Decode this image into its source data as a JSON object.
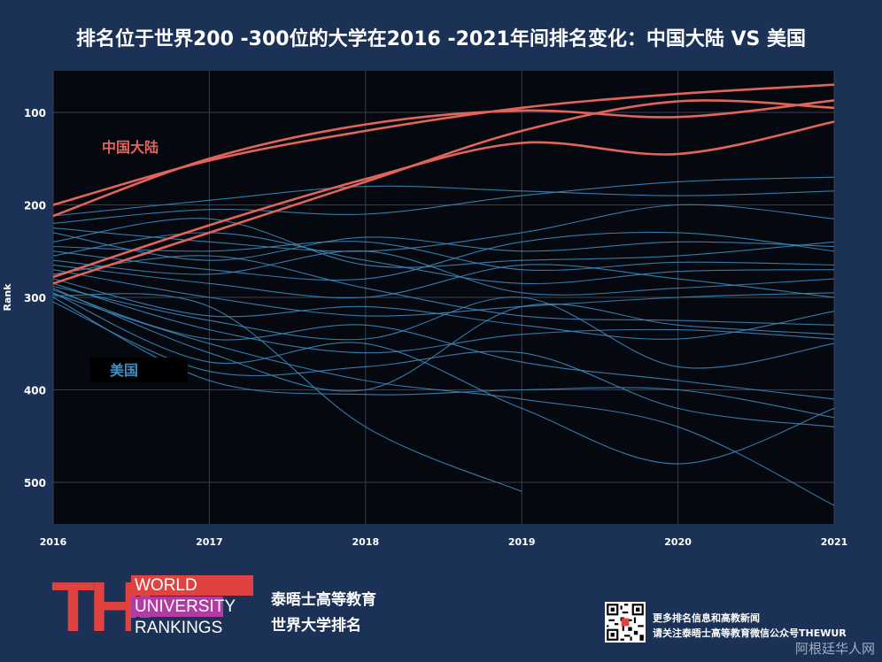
{
  "title": "排名位于世界200 -300位的大学在2016 -2021年间排名变化：中国大陆 VS 美国",
  "chart_data": {
    "type": "line",
    "x": [
      2016,
      2017,
      2018,
      2019,
      2020,
      2021
    ],
    "xlim": [
      2016,
      2021
    ],
    "ylim": [
      545,
      55
    ],
    "y_inverted": true,
    "ylabel": "Rank",
    "yticks": [
      100,
      200,
      300,
      400,
      500
    ],
    "xticks": [
      2016,
      2017,
      2018,
      2019,
      2020,
      2021
    ],
    "grid": true,
    "annotations": [
      {
        "text": "中国大陆",
        "group": "china"
      },
      {
        "text": "美国",
        "group": "usa"
      }
    ],
    "colors": {
      "china": "#e2645a",
      "usa": "#3d8fc4",
      "plot_bg": "#06080f",
      "page_bg": "#1b3156"
    },
    "series": [
      {
        "group": "china",
        "values": [
          200,
          152,
          120,
          95,
          80,
          70
        ]
      },
      {
        "group": "china",
        "values": [
          212,
          150,
          113,
          98,
          105,
          87
        ]
      },
      {
        "group": "china",
        "values": [
          278,
          222,
          172,
          133,
          145,
          110
        ]
      },
      {
        "group": "china",
        "values": [
          285,
          230,
          175,
          120,
          88,
          95
        ]
      },
      {
        "group": "usa",
        "values": [
          212,
          195,
          180,
          185,
          190,
          185
        ]
      },
      {
        "group": "usa",
        "values": [
          220,
          205,
          210,
          190,
          175,
          170
        ]
      },
      {
        "group": "usa",
        "values": [
          225,
          240,
          250,
          230,
          200,
          215
        ]
      },
      {
        "group": "usa",
        "values": [
          230,
          260,
          235,
          250,
          240,
          245
        ]
      },
      {
        "group": "usa",
        "values": [
          240,
          215,
          265,
          260,
          255,
          240
        ]
      },
      {
        "group": "usa",
        "values": [
          245,
          250,
          240,
          270,
          262,
          265
        ]
      },
      {
        "group": "usa",
        "values": [
          250,
          270,
          280,
          240,
          230,
          250
        ]
      },
      {
        "group": "usa",
        "values": [
          255,
          230,
          260,
          285,
          272,
          270
        ]
      },
      {
        "group": "usa",
        "values": [
          260,
          275,
          250,
          295,
          290,
          280
        ]
      },
      {
        "group": "usa",
        "values": [
          265,
          285,
          300,
          265,
          280,
          300
        ]
      },
      {
        "group": "usa",
        "values": [
          270,
          300,
          320,
          310,
          300,
          295
        ]
      },
      {
        "group": "usa",
        "values": [
          275,
          255,
          290,
          320,
          325,
          330
        ]
      },
      {
        "group": "usa",
        "values": [
          280,
          320,
          310,
          330,
          345,
          315
        ]
      },
      {
        "group": "usa",
        "values": [
          285,
          335,
          360,
          340,
          335,
          345
        ]
      },
      {
        "group": "usa",
        "values": [
          290,
          360,
          400,
          310,
          330,
          340
        ]
      },
      {
        "group": "usa",
        "values": [
          292,
          345,
          330,
          370,
          390,
          410
        ]
      },
      {
        "group": "usa",
        "values": [
          295,
          370,
          350,
          420,
          480,
          420
        ]
      },
      {
        "group": "usa",
        "values": [
          298,
          310,
          440,
          510,
          null,
          null
        ]
      },
      {
        "group": "usa",
        "values": [
          300,
          390,
          405,
          400,
          400,
          430
        ]
      },
      {
        "group": "usa",
        "values": [
          305,
          380,
          375,
          360,
          420,
          440
        ]
      },
      {
        "group": "usa",
        "values": [
          296,
          350,
          390,
          410,
          440,
          525
        ]
      },
      {
        "group": "usa",
        "values": [
          288,
          325,
          345,
          300,
          375,
          350
        ]
      }
    ]
  },
  "footer": {
    "logo_text": "THE",
    "logo_lines": [
      "WORLD",
      "UNIVERSITY",
      "RANKINGS"
    ],
    "brand_line1": "泰晤士高等教育",
    "brand_line2": "世界大学排名",
    "qr_note1": "更多排名信息和高教新闻",
    "qr_note2": "请关注泰晤士高等教育微信公众号THEWUR",
    "watermark": "阿根廷华人网"
  }
}
